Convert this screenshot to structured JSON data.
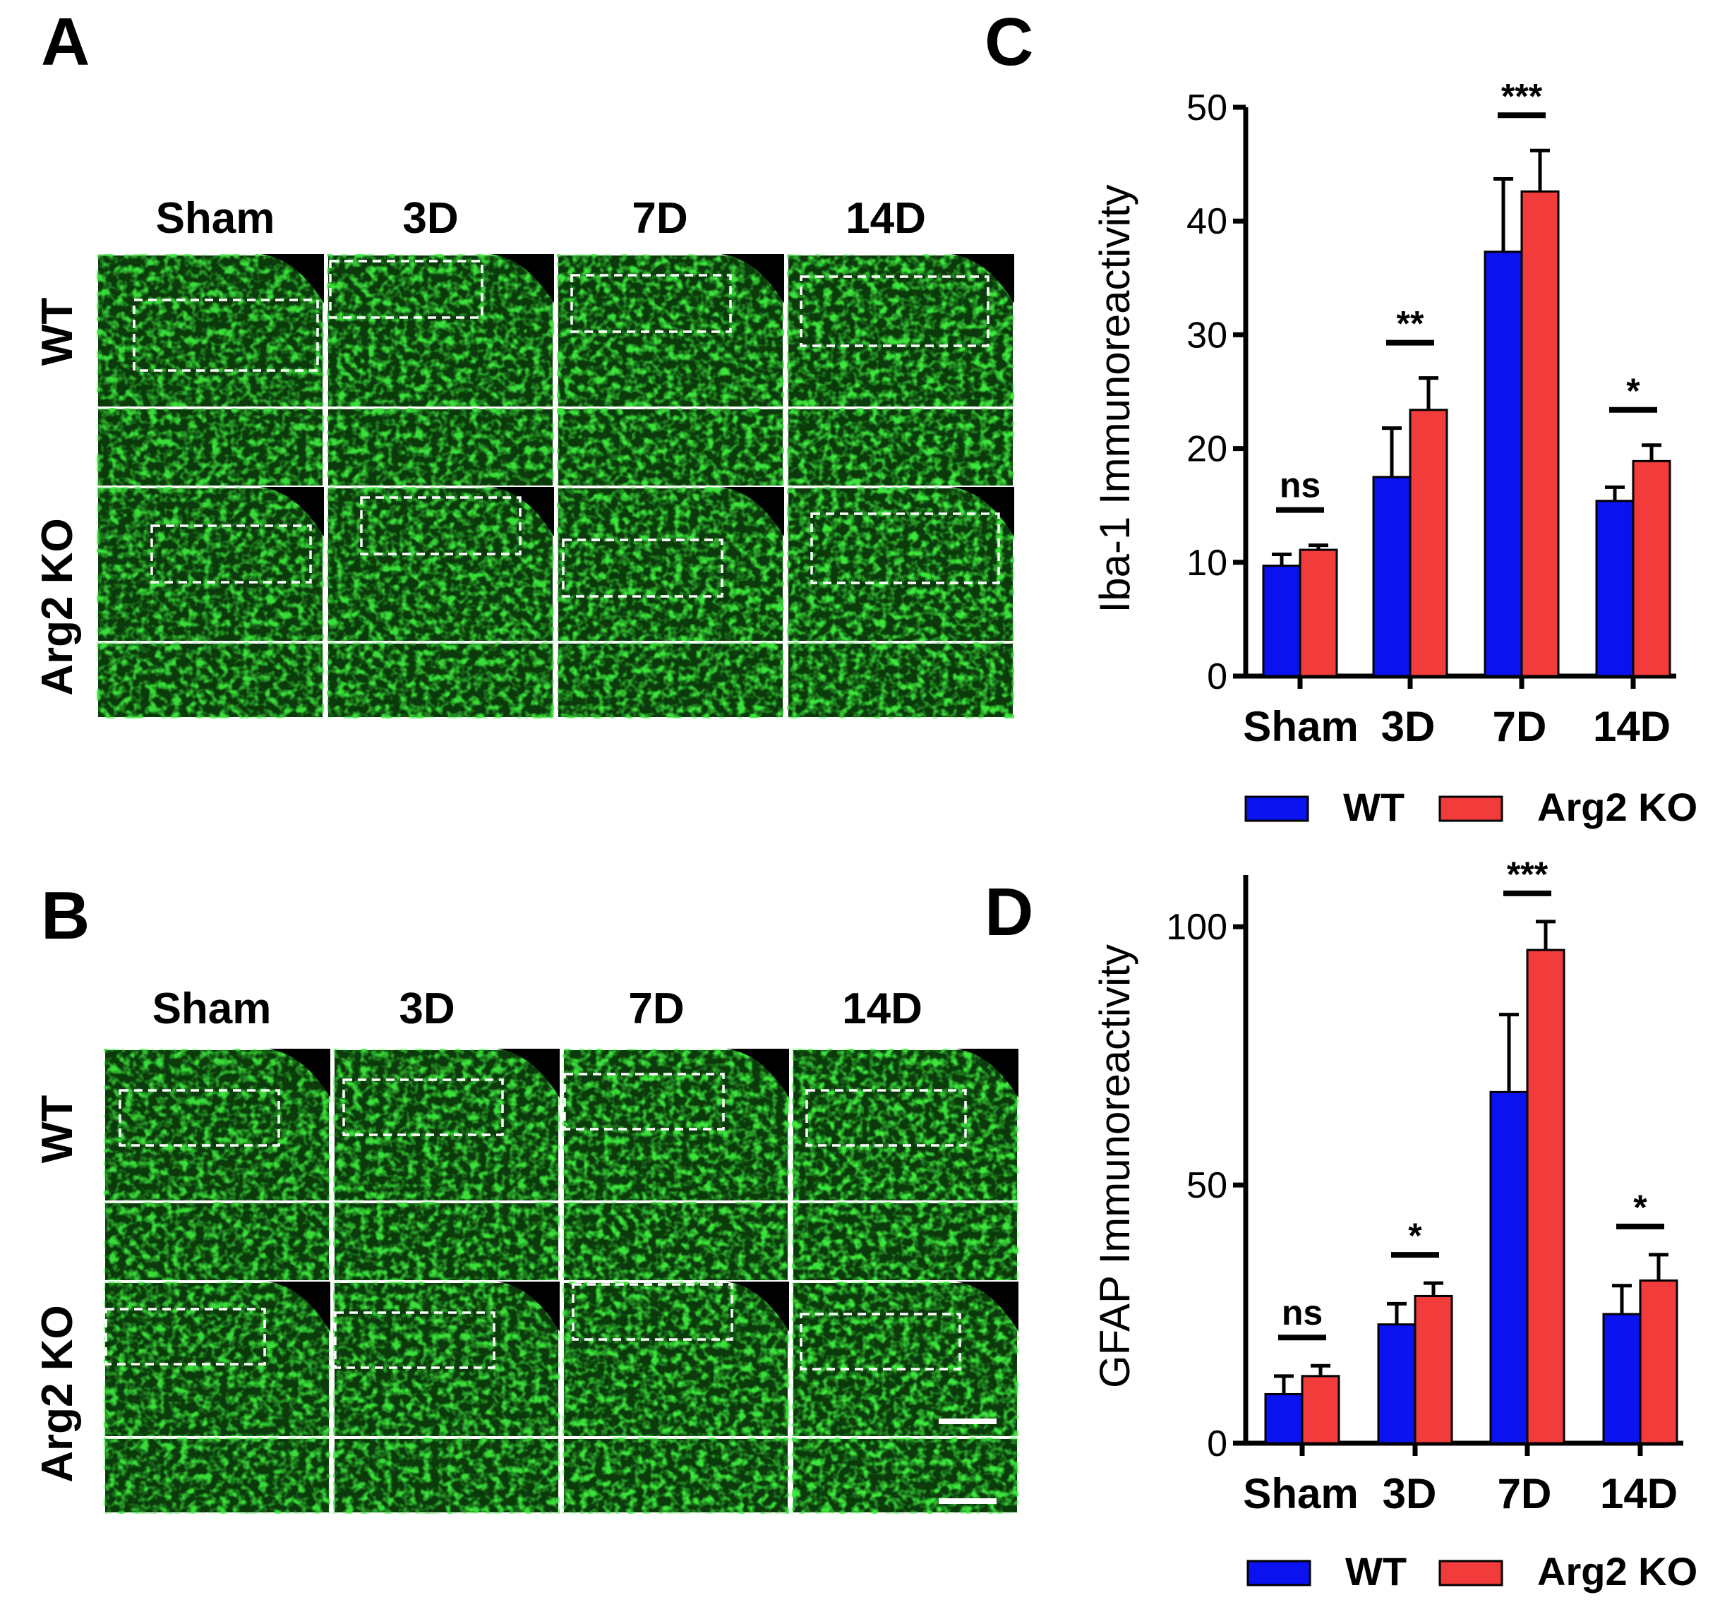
{
  "panels": {
    "A": {
      "letter": "A",
      "columns": [
        "Sham",
        "3D",
        "7D",
        "14D"
      ],
      "rows": [
        "WT",
        "Arg2 KO"
      ]
    },
    "B": {
      "letter": "B",
      "columns": [
        "Sham",
        "3D",
        "7D",
        "14D"
      ],
      "rows": [
        "WT",
        "Arg2 KO"
      ]
    },
    "C": {
      "letter": "C"
    },
    "D": {
      "letter": "D"
    }
  },
  "colors": {
    "wt": "#0a12f0",
    "ko": "#f23b3b",
    "tissue": "#0b3a0b",
    "signal": "#2bd12b"
  },
  "chart_data": [
    {
      "type": "bar",
      "panel": "C",
      "title": "",
      "xlabel": "",
      "ylabel": "Iba-1 Immunoreactivity",
      "ylim": [
        0,
        50
      ],
      "yticks": [
        0,
        10,
        20,
        30,
        40,
        50
      ],
      "ytick_labels": [
        "0",
        "10",
        "20",
        "30",
        "40",
        "50"
      ],
      "categories": [
        "Sham",
        "3D",
        "7D",
        "14D"
      ],
      "series": [
        {
          "name": "WT",
          "values": [
            9.7,
            17.5,
            37.3,
            15.4
          ],
          "errors": [
            1.0,
            4.3,
            6.4,
            1.2
          ]
        },
        {
          "name": "Arg2 KO",
          "values": [
            11.1,
            23.4,
            42.6,
            18.9
          ],
          "errors": [
            0.4,
            2.8,
            3.6,
            1.4
          ]
        }
      ],
      "significance": [
        "ns",
        "**",
        "***",
        "*"
      ],
      "legend": [
        "WT",
        "Arg2 KO"
      ]
    },
    {
      "type": "bar",
      "panel": "D",
      "title": "",
      "xlabel": "",
      "ylabel": "GFAP Immunoreactivity",
      "ylim": [
        0,
        110
      ],
      "yticks": [
        0,
        50,
        100
      ],
      "ytick_labels": [
        "0",
        "50",
        "100"
      ],
      "categories": [
        "Sham",
        "3D",
        "7D",
        "14D"
      ],
      "series": [
        {
          "name": "WT",
          "values": [
            9.5,
            23.0,
            68.0,
            25.0
          ],
          "errors": [
            3.5,
            4.0,
            15.0,
            5.5
          ]
        },
        {
          "name": "Arg2 KO",
          "values": [
            13.0,
            28.5,
            95.5,
            31.5
          ],
          "errors": [
            2.0,
            2.5,
            5.5,
            5.0
          ]
        }
      ],
      "significance": [
        "ns",
        "*",
        "***",
        "*"
      ],
      "legend": [
        "WT",
        "Arg2 KO"
      ]
    }
  ]
}
